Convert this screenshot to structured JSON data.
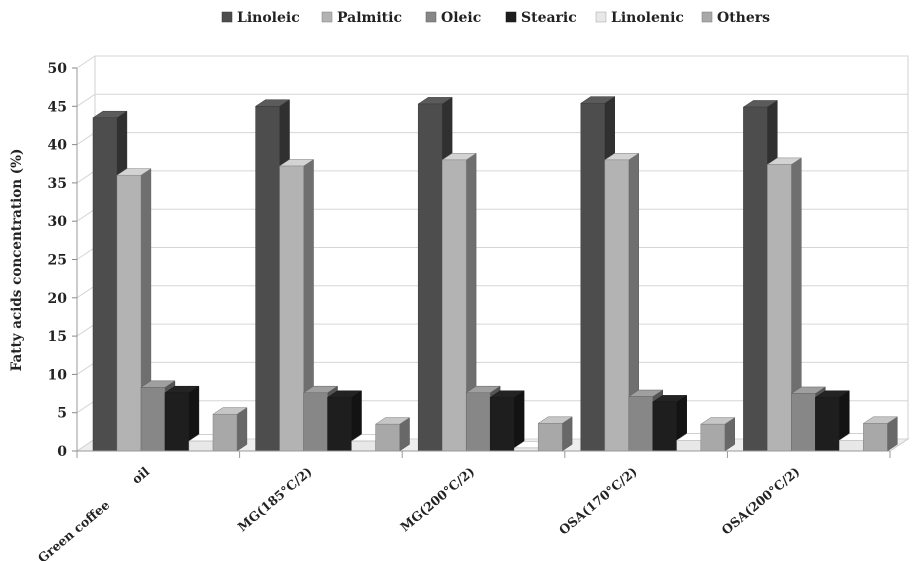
{
  "chart_data": {
    "type": "bar",
    "title": "",
    "xlabel": "",
    "ylabel": "Fatty acids concentration (%)",
    "ylim": [
      0,
      50
    ],
    "yticks": [
      0,
      5,
      10,
      15,
      20,
      25,
      30,
      35,
      40,
      45,
      50
    ],
    "grid": true,
    "legend_position": "top",
    "three_d": true,
    "categories": [
      [
        "Green coffee",
        "oil"
      ],
      [
        "MG(185°C/2)"
      ],
      [
        "MG(200°C/2)"
      ],
      [
        "OSA(170°C/2)"
      ],
      [
        "OSA(200°C/2)"
      ]
    ],
    "series": [
      {
        "name": "Linoleic",
        "color": "#4d4d4d",
        "values": [
          43.5,
          45.0,
          45.3,
          45.4,
          44.9
        ]
      },
      {
        "name": "Palmitic",
        "color": "#b3b3b3",
        "values": [
          36.0,
          37.2,
          38.0,
          38.0,
          37.4
        ]
      },
      {
        "name": "Oleic",
        "color": "#878787",
        "values": [
          8.3,
          7.6,
          7.6,
          7.1,
          7.5
        ]
      },
      {
        "name": "Stearic",
        "color": "#1e1e1e",
        "values": [
          7.6,
          7.0,
          7.0,
          6.4,
          7.0
        ]
      },
      {
        "name": "Linolenic",
        "color": "#e8e8e8",
        "values": [
          1.3,
          1.3,
          0.4,
          1.4,
          1.4
        ]
      },
      {
        "name": "Others",
        "color": "#a8a8a8",
        "values": [
          4.8,
          3.5,
          3.6,
          3.5,
          3.6
        ]
      }
    ]
  }
}
